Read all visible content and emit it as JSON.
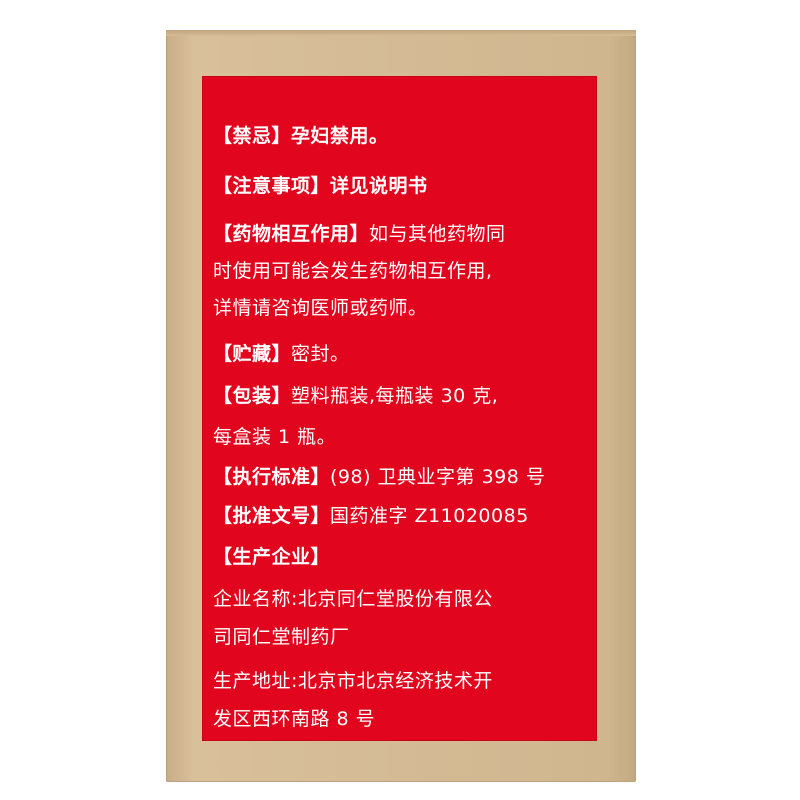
{
  "label": {
    "lines": [
      {
        "heading": "【禁忌】",
        "text": "孕妇禁用。"
      },
      {
        "heading": "【注意事项】",
        "text": "详见说明书"
      },
      {
        "heading": "【药物相互作用】",
        "text": "如与其他药物同"
      },
      {
        "heading": "",
        "text": "时使用可能会发生药物相互作用,"
      },
      {
        "heading": "",
        "text": "详情请咨询医师或药师。"
      },
      {
        "heading": "【贮藏】",
        "text": "密封。"
      },
      {
        "heading": "【包装】",
        "text": "塑料瓶装,每瓶装 30 克,"
      },
      {
        "heading": "",
        "text": "每盒装 1 瓶。"
      },
      {
        "heading": "【执行标准】",
        "text": "(98) 卫典业字第 398 号"
      },
      {
        "heading": "【批准文号】",
        "text": "国药准字 Z11020085"
      },
      {
        "heading": "【生产企业】",
        "text": ""
      },
      {
        "heading": "",
        "text": "企业名称:北京同仁堂股份有限公"
      },
      {
        "heading": "",
        "text": "司同仁堂制药厂"
      },
      {
        "heading": "",
        "text": "生产地址:北京市北京经济技术开"
      },
      {
        "heading": "",
        "text": "发区西环南路 8 号"
      }
    ]
  },
  "colors": {
    "label_red": "#e1061d",
    "box_tan": "#d4bb95",
    "text": "#ffffff"
  }
}
